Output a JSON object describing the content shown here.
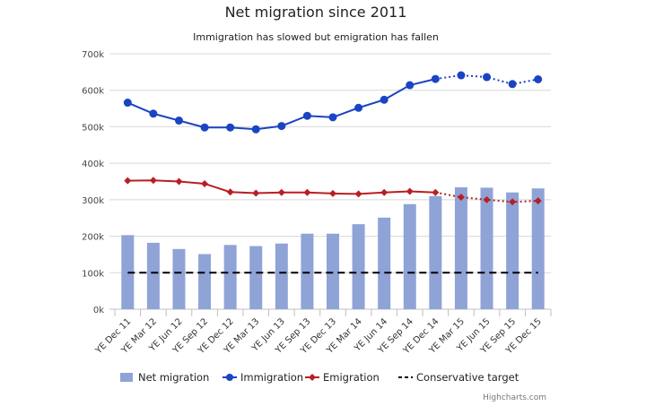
{
  "chart_data": {
    "type": "bar+line",
    "title": "Net migration since 2011",
    "subtitle": "Immigration has slowed but emigration has fallen",
    "categories": [
      "YE Dec 11",
      "YE Mar 12",
      "YE Jun 12",
      "YE Sep 12",
      "YE Dec 12",
      "YE Mar 13",
      "YE Jun 13",
      "YE Sep 13",
      "YE Dec 13",
      "YE Mar 14",
      "YE Jun 14",
      "YE Sep 14",
      "YE Dec 14",
      "YE Mar 15",
      "YE Jun 15",
      "YE Sep 15",
      "YE Dec 15"
    ],
    "ylim": [
      0,
      700000
    ],
    "yticks": [
      "0k",
      "100k",
      "200k",
      "300k",
      "400k",
      "500k",
      "600k",
      "700k"
    ],
    "grid": true,
    "legend": "bottom",
    "series": [
      {
        "name": "Net migration",
        "type": "bar",
        "color": "#8fa3d6",
        "values": [
          203000,
          182000,
          165000,
          151000,
          176000,
          173000,
          180000,
          207000,
          207000,
          233000,
          251000,
          288000,
          310000,
          334000,
          333000,
          320000,
          331000
        ]
      },
      {
        "name": "Immigration",
        "type": "line",
        "color": "#1a44c2",
        "marker": "circle",
        "dotted_from": "YE Dec 14",
        "values": [
          566000,
          536000,
          517000,
          498000,
          498000,
          493000,
          502000,
          530000,
          526000,
          552000,
          574000,
          614000,
          631000,
          641000,
          636000,
          617000,
          630000
        ]
      },
      {
        "name": "Emigration",
        "type": "line",
        "color": "#b81f24",
        "marker": "diamond",
        "dotted_from": "YE Dec 14",
        "values": [
          352000,
          353000,
          350000,
          344000,
          321000,
          318000,
          320000,
          320000,
          317000,
          316000,
          320000,
          323000,
          320000,
          307000,
          300000,
          294000,
          297000
        ]
      },
      {
        "name": "Conservative target",
        "type": "line",
        "color": "#000000",
        "dash": true,
        "values": [
          100000,
          100000,
          100000,
          100000,
          100000,
          100000,
          100000,
          100000,
          100000,
          100000,
          100000,
          100000,
          100000,
          100000,
          100000,
          100000,
          100000
        ]
      }
    ],
    "credit": "Highcharts.com"
  }
}
